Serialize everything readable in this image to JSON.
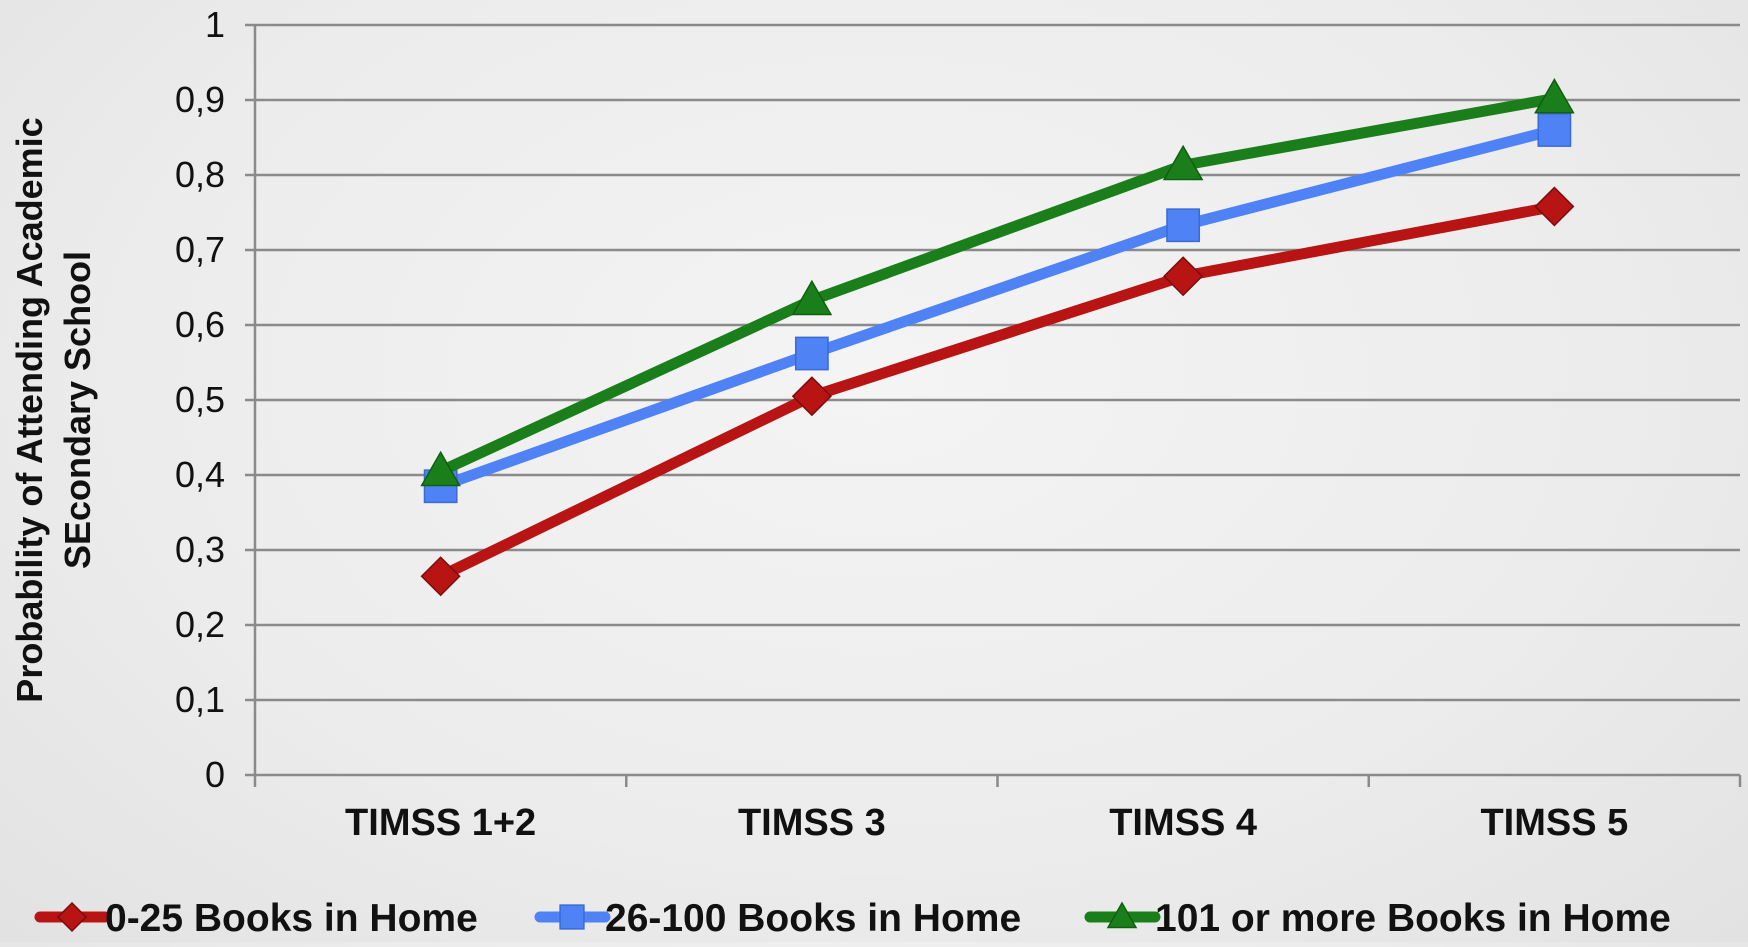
{
  "chart_data": {
    "type": "line",
    "title": "",
    "categories": [
      "TIMSS 1+2",
      "TIMSS 3",
      "TIMSS 4",
      "TIMSS 5"
    ],
    "series": [
      {
        "name": "0-25 Books in Home",
        "values": [
          0.265,
          0.505,
          0.665,
          0.758
        ],
        "color": "#b81414",
        "marker": "diamond"
      },
      {
        "name": "26-100 Books in Home",
        "values": [
          0.385,
          0.562,
          0.733,
          0.86
        ],
        "color": "#4f82f5",
        "marker": "square"
      },
      {
        "name": "101 or more Books in Home",
        "values": [
          0.405,
          0.633,
          0.813,
          0.902
        ],
        "color": "#1a7f1a",
        "marker": "triangle"
      }
    ],
    "ylabel_lines": [
      "Probability of Attending Academic",
      "SEcondary School"
    ],
    "xlabel": "",
    "ylim": [
      0,
      1
    ],
    "yticks": [
      0,
      0.1,
      0.2,
      0.3,
      0.4,
      0.5,
      0.6,
      0.7,
      0.8,
      0.9,
      1
    ],
    "ytick_labels": [
      "0",
      "0,1",
      "0,2",
      "0,3",
      "0,4",
      "0,5",
      "0,6",
      "0,7",
      "0,8",
      "0,9",
      "1"
    ],
    "grid": true,
    "legend_position": "bottom"
  }
}
